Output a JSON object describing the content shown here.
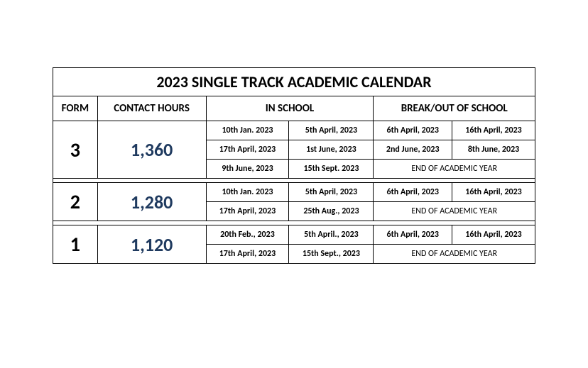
{
  "table": {
    "title": "2023 SINGLE TRACK ACADEMIC CALENDAR",
    "columns": {
      "form": "FORM",
      "contact_hours": "CONTACT HOURS",
      "in_school": "IN SCHOOL",
      "break_out": "BREAK/OUT OF SCHOOL"
    },
    "colors": {
      "border": "#000000",
      "text": "#000000",
      "hours_color": "#1f3a5f",
      "background": "#ffffff"
    },
    "fontsize": {
      "title": 22,
      "header": 15,
      "form_num": 28,
      "hours": 26,
      "date": 12
    },
    "forms": [
      {
        "form": "3",
        "hours": "1,360",
        "rows": [
          {
            "in1": "10th Jan. 2023",
            "in2": "5th April, 2023",
            "out1": "6th April, 2023",
            "out2": "16th April, 2023"
          },
          {
            "in1": "17th April, 2023",
            "in2": "1st June, 2023",
            "out1": "2nd June, 2023",
            "out2": "8th June, 2023"
          },
          {
            "in1": "9th June, 2023",
            "in2": "15th Sept. 2023",
            "end": "END OF ACADEMIC YEAR"
          }
        ]
      },
      {
        "form": "2",
        "hours": "1,280",
        "rows": [
          {
            "in1": "10th Jan. 2023",
            "in2": "5th April, 2023",
            "out1": "6th April, 2023",
            "out2": "16th April, 2023"
          },
          {
            "in1": "17th April, 2023",
            "in2": "25th Aug., 2023",
            "end": "END OF ACADEMIC YEAR"
          }
        ]
      },
      {
        "form": "1",
        "hours": "1,120",
        "rows": [
          {
            "in1": "20th Feb., 2023",
            "in2": "5th April., 2023",
            "out1": "6th April, 2023",
            "out2": "16th April, 2023"
          },
          {
            "in1": "17th April, 2023",
            "in2": "15th Sept., 2023",
            "end": "END OF ACADEMIC YEAR"
          }
        ]
      }
    ]
  }
}
